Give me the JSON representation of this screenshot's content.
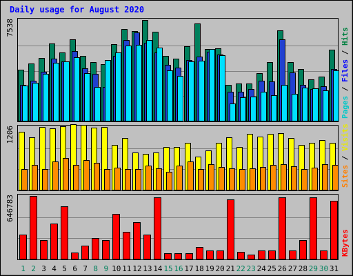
{
  "chart_data": {
    "type": "bar",
    "title": "Daily usage for August 2020",
    "categories": [
      "1",
      "2",
      "3",
      "4",
      "5",
      "6",
      "7",
      "8",
      "9",
      "10",
      "11",
      "12",
      "13",
      "14",
      "15",
      "16",
      "17",
      "18",
      "19",
      "20",
      "21",
      "22",
      "23",
      "24",
      "25",
      "26",
      "27",
      "28",
      "29",
      "30",
      "31"
    ],
    "weekend_days": [
      "1",
      "2",
      "8",
      "9",
      "15",
      "16",
      "22",
      "23",
      "29",
      "30"
    ],
    "panels": [
      {
        "name": "hits-files-pages",
        "ymax_label": "7538",
        "ylim": [
          0,
          7538
        ],
        "legend": [
          {
            "text": "Pages",
            "color": "#00c8c8"
          },
          {
            "text": " / ",
            "color": "#000000"
          },
          {
            "text": "Files",
            "color": "#0000ff"
          },
          {
            "text": " / ",
            "color": "#000000"
          },
          {
            "text": "Hits",
            "color": "#008040"
          }
        ],
        "series": [
          {
            "name": "Hits",
            "color": "#00805c",
            "values": [
              3840,
              4290,
              4710,
              5790,
              5150,
              6090,
              4850,
              4430,
              4240,
              5720,
              6870,
              6740,
              7520,
              6690,
              4870,
              4680,
              5580,
              7260,
              5370,
              5440,
              2700,
              2800,
              2800,
              3610,
              4430,
              6780,
              4430,
              3880,
              3130,
              3320,
              5310
            ]
          },
          {
            "name": "Files",
            "color": "#2040d0",
            "values": [
              2710,
              3010,
              3690,
              4690,
              4440,
              5240,
              3960,
              3550,
              2570,
              4860,
              6060,
              6600,
              5870,
              5110,
              4200,
              4000,
              4570,
              4840,
              5200,
              4950,
              2190,
              2230,
              2400,
              3010,
              2980,
              6110,
              3650,
              2730,
              2420,
              2630,
              3910
            ]
          },
          {
            "name": "Pages",
            "color": "#00e0ff",
            "values": [
              2650,
              2870,
              3540,
              4340,
              4440,
              4790,
              3580,
              2570,
              4560,
              5140,
              5620,
              5710,
              6040,
              5500,
              3780,
              3400,
              4440,
              4520,
              5400,
              4920,
              1330,
              1820,
              1840,
              2220,
              1970,
              2720,
              2040,
              2490,
              2460,
              2320,
              3810
            ]
          }
        ]
      },
      {
        "name": "visits-sites",
        "ymax_label": "1206",
        "ylim": [
          0,
          1206
        ],
        "legend": [
          {
            "text": "Sites",
            "color": "#ff8000"
          },
          {
            "text": " / ",
            "color": "#000000"
          },
          {
            "text": "Visits",
            "color": "#e8e800"
          }
        ],
        "series": [
          {
            "name": "Visits",
            "color": "#ffff00",
            "values": [
              1110,
              1010,
              1210,
              1180,
              1220,
              1260,
              1250,
              1190,
              1200,
              860,
              1000,
              720,
              700,
              720,
              830,
              830,
              900,
              640,
              760,
              900,
              1010,
              830,
              1070,
              1020,
              1080,
              1090,
              1000,
              870,
              900,
              960,
              910
            ]
          },
          {
            "name": "Sites",
            "color": "#ff8c00",
            "values": [
              410,
              490,
              410,
              550,
              620,
              490,
              580,
              530,
              400,
              430,
              400,
              400,
              470,
              420,
              360,
              470,
              550,
              400,
              500,
              450,
              420,
              400,
              420,
              440,
              480,
              500,
              460,
              410,
              430,
              500,
              480
            ]
          }
        ]
      },
      {
        "name": "kbytes",
        "ymax_label": "646783",
        "ylim": [
          0,
          646783
        ],
        "legend": [
          {
            "text": "KBytes",
            "color": "#ff0000"
          }
        ],
        "series": [
          {
            "name": "KBytes",
            "color": "#ff0000",
            "values": [
              255000,
              646783,
              195000,
              363000,
              540000,
              73000,
              140000,
              218000,
              195000,
              463000,
              278000,
              380000,
              251000,
              630000,
              65000,
              65000,
              65000,
              125000,
              94000,
              94000,
              610000,
              75000,
              48000,
              94000,
              94000,
              630000,
              94000,
              195000,
              630000,
              94000,
              598000
            ]
          }
        ]
      }
    ]
  }
}
